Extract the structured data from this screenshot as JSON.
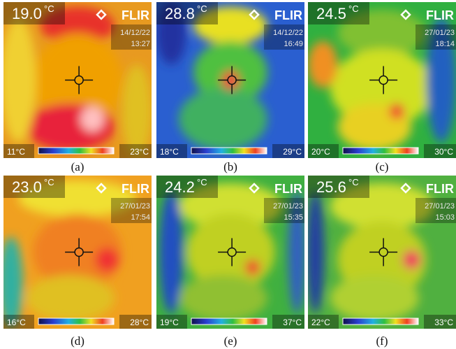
{
  "panels": [
    {
      "caption": "(a)",
      "temperature": "19.0",
      "unit": "°C",
      "brand": "FLIR",
      "date": "14/12/22",
      "time": "13:27",
      "scale_min": "11°C",
      "scale_max": "23°C"
    },
    {
      "caption": "(b)",
      "temperature": "28.8",
      "unit": "°C",
      "brand": "FLIR",
      "date": "14/12/22",
      "time": "16:49",
      "scale_min": "18°C",
      "scale_max": "29°C"
    },
    {
      "caption": "(c)",
      "temperature": "24.5",
      "unit": "°C",
      "brand": "FLIR",
      "date": "27/01/23",
      "time": "18:14",
      "scale_min": "20°C",
      "scale_max": "30°C"
    },
    {
      "caption": "(d)",
      "temperature": "23.0",
      "unit": "°C",
      "brand": "FLIR",
      "date": "27/01/23",
      "time": "17:54",
      "scale_min": "16°C",
      "scale_max": "28°C"
    },
    {
      "caption": "(e)",
      "temperature": "24.2",
      "unit": "°C",
      "brand": "FLIR",
      "date": "27/01/23",
      "time": "15:35",
      "scale_min": "19°C",
      "scale_max": "37°C"
    },
    {
      "caption": "(f)",
      "temperature": "25.6",
      "unit": "°C",
      "brand": "FLIR",
      "date": "27/01/23",
      "time": "15:03",
      "scale_min": "22°C",
      "scale_max": "33°C"
    }
  ]
}
